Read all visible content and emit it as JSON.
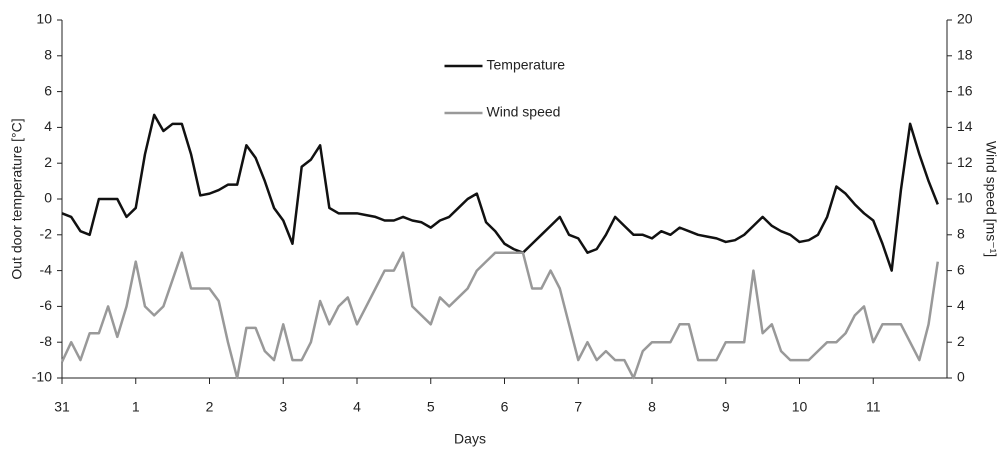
{
  "chart_data": {
    "type": "line",
    "x_label": "Days",
    "y_label": "Out door temperature [°C]",
    "y2_label": "Wind speed [ms⁻¹]",
    "x": [
      0,
      0.125,
      0.25,
      0.375,
      0.5,
      0.625,
      0.75,
      0.875,
      1,
      1.125,
      1.25,
      1.375,
      1.5,
      1.625,
      1.75,
      1.875,
      2,
      2.125,
      2.25,
      2.375,
      2.5,
      2.625,
      2.75,
      2.875,
      3,
      3.125,
      3.25,
      3.375,
      3.5,
      3.625,
      3.75,
      3.875,
      4,
      4.125,
      4.25,
      4.375,
      4.5,
      4.625,
      4.75,
      4.875,
      5,
      5.125,
      5.25,
      5.375,
      5.5,
      5.625,
      5.75,
      5.875,
      6,
      6.125,
      6.25,
      6.375,
      6.5,
      6.625,
      6.75,
      6.875,
      7,
      7.125,
      7.25,
      7.375,
      7.5,
      7.625,
      7.75,
      7.875,
      8,
      8.125,
      8.25,
      8.375,
      8.5,
      8.625,
      8.75,
      8.875,
      9,
      9.125,
      9.25,
      9.375,
      9.5,
      9.625,
      9.75,
      9.875,
      10,
      10.125,
      10.25,
      10.375,
      10.5,
      10.625,
      10.75,
      10.875,
      11,
      11.125,
      11.25,
      11.375,
      11.5,
      11.625,
      11.75,
      11.875
    ],
    "series": [
      {
        "name": "Temperature",
        "color": "#111111",
        "axis": "y",
        "values": [
          -0.8,
          -1.0,
          -1.8,
          -2.0,
          0,
          0,
          0,
          -1.0,
          -0.5,
          2.5,
          4.7,
          3.8,
          4.2,
          4.2,
          2.5,
          0.2,
          0.3,
          0.5,
          0.8,
          0.8,
          3.0,
          2.3,
          1.0,
          -0.5,
          -1.2,
          -2.5,
          1.8,
          2.2,
          3.0,
          -0.5,
          -0.8,
          -0.8,
          -0.8,
          -0.9,
          -1.0,
          -1.2,
          -1.2,
          -1.0,
          -1.2,
          -1.3,
          -1.6,
          -1.2,
          -1.0,
          -0.5,
          0,
          0.3,
          -1.3,
          -1.8,
          -2.5,
          -2.8,
          -3.0,
          -2.5,
          -2.0,
          -1.5,
          -1.0,
          -2.0,
          -2.2,
          -3.0,
          -2.8,
          -2.0,
          -1.0,
          -1.5,
          -2.0,
          -2.0,
          -2.2,
          -1.8,
          -2.0,
          -1.6,
          -1.8,
          -2.0,
          -2.1,
          -2.2,
          -2.4,
          -2.3,
          -2.0,
          -1.5,
          -1.0,
          -1.5,
          -1.8,
          -2.0,
          -2.4,
          -2.3,
          -2.0,
          -1.0,
          0.7,
          0.3,
          -0.3,
          -0.8,
          -1.2,
          -2.5,
          -4.0,
          0.5,
          4.2,
          2.5,
          1.0,
          -0.3
        ]
      },
      {
        "name": "Wind speed",
        "color": "#999999",
        "axis": "y2",
        "values": [
          0.9,
          2.0,
          1.0,
          2.5,
          2.5,
          4.0,
          2.3,
          4.0,
          6.5,
          4.0,
          3.5,
          4.0,
          5.5,
          7.0,
          5.0,
          5.0,
          5.0,
          4.3,
          2.0,
          0.0,
          2.8,
          2.8,
          1.5,
          1.0,
          3.0,
          1.0,
          1.0,
          2.0,
          4.3,
          3.0,
          4.0,
          4.5,
          3.0,
          4.0,
          5.0,
          6.0,
          6.0,
          7.0,
          4.0,
          3.5,
          3.0,
          4.5,
          4.0,
          4.5,
          5.0,
          6.0,
          6.5,
          7.0,
          7.0,
          7.0,
          7.0,
          5.0,
          5.0,
          6.0,
          5.0,
          3.0,
          1.0,
          2.0,
          1.0,
          1.5,
          1.0,
          1.0,
          0.0,
          1.5,
          2.0,
          2.0,
          2.0,
          3.0,
          3.0,
          1.0,
          1.0,
          1.0,
          2.0,
          2.0,
          2.0,
          6.0,
          2.5,
          3.0,
          1.5,
          1.0,
          1.0,
          1.0,
          1.5,
          2.0,
          2.0,
          2.5,
          3.5,
          4.0,
          2.0,
          3.0,
          3.0,
          3.0,
          2.0,
          1.0,
          3.0,
          6.5
        ]
      }
    ],
    "xlim": [
      0,
      12
    ],
    "xticks": [
      {
        "value": 0,
        "label": "31"
      },
      1,
      2,
      3,
      4,
      5,
      6,
      7,
      8,
      9,
      10,
      11
    ],
    "ylim": [
      -10,
      10
    ],
    "yticks": [
      -10,
      -8,
      -6,
      -4,
      -2,
      0,
      2,
      4,
      6,
      8,
      10
    ],
    "y2lim": [
      0,
      20
    ],
    "y2ticks": [
      0,
      2,
      4,
      6,
      8,
      10,
      12,
      14,
      16,
      18,
      20
    ],
    "legend": "upper center",
    "grid": false
  }
}
